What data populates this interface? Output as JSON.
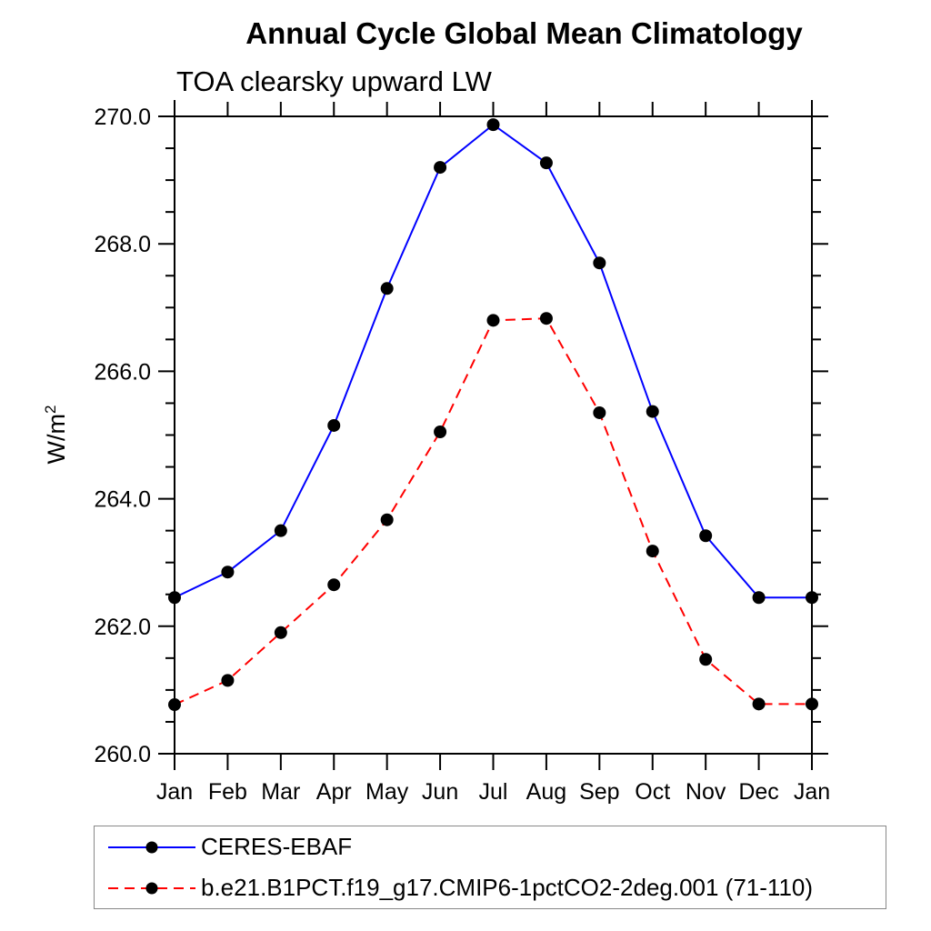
{
  "chart": {
    "title": "Annual Cycle Global Mean Climatology",
    "subtitle": "TOA clearsky upward LW",
    "ylabel_base": "W/m",
    "ylabel_exp": "2"
  },
  "chart_data": {
    "type": "line",
    "title": "Annual Cycle Global Mean Climatology",
    "subtitle": "TOA clearsky upward LW",
    "xlabel": "",
    "ylabel": "W/m^2",
    "categories": [
      "Jan",
      "Feb",
      "Mar",
      "Apr",
      "May",
      "Jun",
      "Jul",
      "Aug",
      "Sep",
      "Oct",
      "Nov",
      "Dec",
      "Jan"
    ],
    "ylim": [
      260.0,
      270.0
    ],
    "y_major_step": 2.0,
    "y_minor_step": 0.5,
    "y_tick_labels": [
      "260.0",
      "262.0",
      "264.0",
      "266.0",
      "268.0",
      "270.0"
    ],
    "grid": false,
    "legend_position": "bottom-left-box",
    "axis_color": "#000000",
    "marker_shape": "filled-circle",
    "series": [
      {
        "name": "CERES-EBAF",
        "color": "#0000ff",
        "line_style": "solid",
        "dash": "none",
        "marker_color": "#000000",
        "values": [
          262.45,
          262.85,
          263.5,
          265.15,
          267.3,
          269.2,
          269.87,
          269.27,
          267.7,
          265.37,
          263.42,
          262.45,
          262.45
        ]
      },
      {
        "name": "b.e21.B1PCT.f19_g17.CMIP6-1pctCO2-2deg.001 (71-110)",
        "color": "#ff0000",
        "line_style": "dashed",
        "dash": "11,7",
        "marker_color": "#000000",
        "values": [
          260.77,
          261.15,
          261.9,
          262.65,
          263.67,
          265.05,
          266.8,
          266.83,
          265.35,
          263.18,
          261.48,
          260.78,
          260.78
        ]
      }
    ]
  }
}
